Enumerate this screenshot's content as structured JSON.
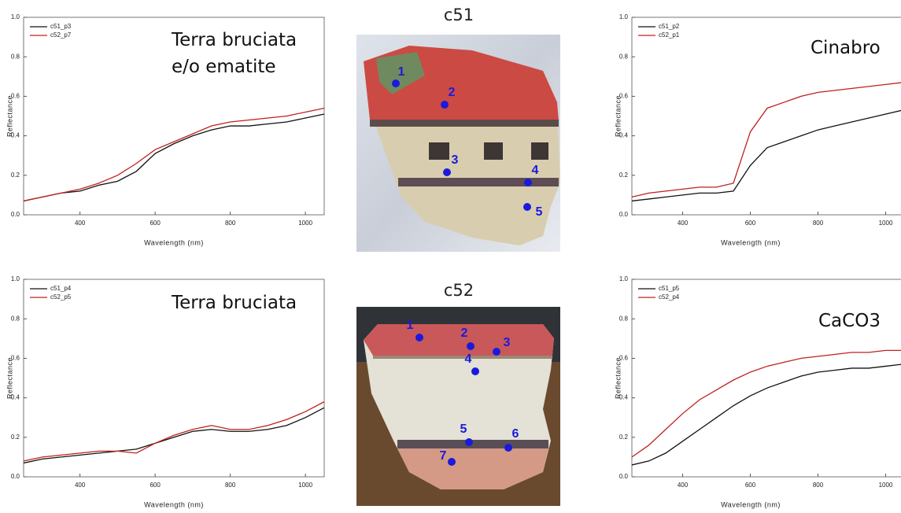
{
  "chart_data": [
    {
      "type": "line",
      "xlabel": "Wavelength (nm)",
      "ylabel": "Reflectance",
      "annotation": [
        "Terra bruciata",
        "e/o ematite"
      ],
      "legend": "upper left",
      "x": [
        250,
        300,
        350,
        400,
        450,
        500,
        550,
        600,
        650,
        700,
        750,
        800,
        850,
        900,
        950,
        1000,
        1050
      ],
      "xlim": [
        250,
        1050
      ],
      "xticks": [
        400,
        600,
        800,
        1000
      ],
      "ylim": [
        0,
        1
      ],
      "yticks": [
        {
          "value": 0,
          "label": "0.0"
        },
        0.2,
        0.4,
        0.6,
        0.8,
        {
          "value": 1,
          "label": "1.0"
        }
      ],
      "series": [
        {
          "name": "c51_p3",
          "color": "#111111",
          "values": [
            0.07,
            0.09,
            0.11,
            0.12,
            0.15,
            0.17,
            0.22,
            0.31,
            0.36,
            0.4,
            0.43,
            0.45,
            0.45,
            0.46,
            0.47,
            0.49,
            0.51
          ]
        },
        {
          "name": "c52_p7",
          "color": "#c0201e",
          "values": [
            0.07,
            0.09,
            0.11,
            0.13,
            0.16,
            0.2,
            0.26,
            0.33,
            0.37,
            0.41,
            0.45,
            0.47,
            0.48,
            0.49,
            0.5,
            0.52,
            0.54
          ]
        }
      ]
    },
    {
      "type": "line",
      "xlabel": "Wavelength (nm)",
      "ylabel": "Reflectance",
      "annotation": [
        "Cinabro"
      ],
      "legend": "upper left",
      "x": [
        250,
        300,
        350,
        400,
        450,
        500,
        550,
        600,
        650,
        700,
        750,
        800,
        850,
        900,
        950,
        1000,
        1050
      ],
      "xlim": [
        250,
        1050
      ],
      "xticks": [
        400,
        600,
        800,
        1000
      ],
      "ylim": [
        0,
        1
      ],
      "yticks": [
        {
          "value": 0,
          "label": "0.0"
        },
        0.2,
        0.4,
        0.6,
        0.8,
        {
          "value": 1,
          "label": "1.0"
        }
      ],
      "series": [
        {
          "name": "c51_p2",
          "color": "#111111",
          "values": [
            0.07,
            0.08,
            0.09,
            0.1,
            0.11,
            0.11,
            0.12,
            0.25,
            0.34,
            0.37,
            0.4,
            0.43,
            0.45,
            0.47,
            0.49,
            0.51,
            0.53
          ]
        },
        {
          "name": "c52_p1",
          "color": "#c0201e",
          "values": [
            0.09,
            0.11,
            0.12,
            0.13,
            0.14,
            0.14,
            0.16,
            0.42,
            0.54,
            0.57,
            0.6,
            0.62,
            0.63,
            0.64,
            0.65,
            0.66,
            0.67
          ]
        }
      ]
    },
    {
      "type": "line",
      "xlabel": "Wavelength (nm)",
      "ylabel": "Reflectance",
      "annotation": [
        "Terra bruciata"
      ],
      "legend": "upper left",
      "x": [
        250,
        300,
        350,
        400,
        450,
        500,
        550,
        600,
        650,
        700,
        750,
        800,
        850,
        900,
        950,
        1000,
        1050
      ],
      "xlim": [
        250,
        1050
      ],
      "xticks": [
        400,
        600,
        800,
        1000
      ],
      "ylim": [
        0,
        1
      ],
      "yticks": [
        {
          "value": 0,
          "label": "0.0"
        },
        0.2,
        0.4,
        0.6,
        0.8,
        {
          "value": 1,
          "label": "1.0"
        }
      ],
      "series": [
        {
          "name": "c51_p4",
          "color": "#111111",
          "values": [
            0.07,
            0.09,
            0.1,
            0.11,
            0.12,
            0.13,
            0.14,
            0.17,
            0.2,
            0.23,
            0.24,
            0.23,
            0.23,
            0.24,
            0.26,
            0.3,
            0.35
          ]
        },
        {
          "name": "c52_p5",
          "color": "#c0201e",
          "values": [
            0.08,
            0.1,
            0.11,
            0.12,
            0.13,
            0.13,
            0.12,
            0.17,
            0.21,
            0.24,
            0.26,
            0.24,
            0.24,
            0.26,
            0.29,
            0.33,
            0.38
          ]
        }
      ]
    },
    {
      "type": "line",
      "xlabel": "Wavelength (nm)",
      "ylabel": "Reflectance",
      "annotation": [
        "CaCO3"
      ],
      "legend": "upper left",
      "x": [
        250,
        300,
        350,
        400,
        450,
        500,
        550,
        600,
        650,
        700,
        750,
        800,
        850,
        900,
        950,
        1000,
        1050
      ],
      "xlim": [
        250,
        1050
      ],
      "xticks": [
        400,
        600,
        800,
        1000
      ],
      "ylim": [
        0,
        1
      ],
      "yticks": [
        {
          "value": 0,
          "label": "0.0"
        },
        0.2,
        0.4,
        0.6,
        0.8,
        {
          "value": 1,
          "label": "1.0"
        }
      ],
      "series": [
        {
          "name": "c51_p5",
          "color": "#111111",
          "values": [
            0.06,
            0.08,
            0.12,
            0.18,
            0.24,
            0.3,
            0.36,
            0.41,
            0.45,
            0.48,
            0.51,
            0.53,
            0.54,
            0.55,
            0.55,
            0.56,
            0.57
          ]
        },
        {
          "name": "c52_p4",
          "color": "#c0201e",
          "values": [
            0.1,
            0.16,
            0.24,
            0.32,
            0.39,
            0.44,
            0.49,
            0.53,
            0.56,
            0.58,
            0.6,
            0.61,
            0.62,
            0.63,
            0.63,
            0.64,
            0.64
          ]
        }
      ]
    }
  ],
  "photos": [
    {
      "title": "c51",
      "points": [
        "1",
        "2",
        "3",
        "4",
        "5"
      ]
    },
    {
      "title": "c52",
      "points": [
        "1",
        "2",
        "3",
        "4",
        "5",
        "6",
        "7"
      ]
    }
  ]
}
